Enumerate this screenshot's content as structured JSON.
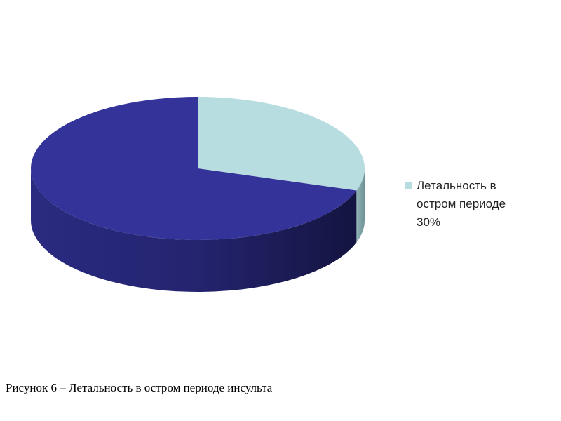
{
  "chart_data": {
    "type": "pie",
    "categories": [
      "Летальность в остром периоде 30%",
      null
    ],
    "values": [
      30,
      70
    ],
    "colors": [
      "#b8dde1",
      "#333399"
    ],
    "legend": "right",
    "caption": "Рисунок 6 – Летальность в остром периоде инсульта"
  }
}
